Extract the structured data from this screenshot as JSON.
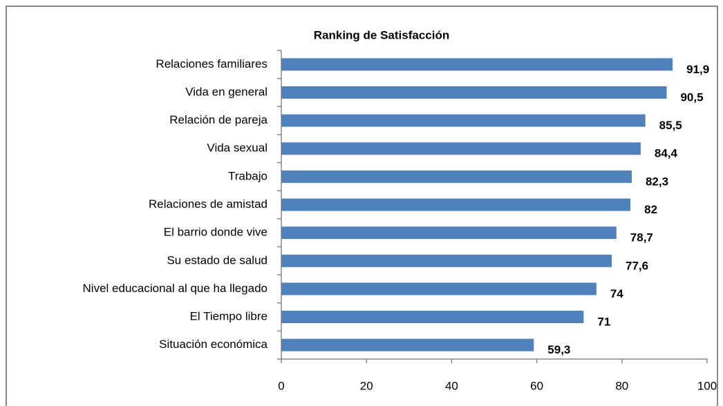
{
  "chart_data": {
    "type": "bar",
    "orientation": "horizontal",
    "title": "Ranking de Satisfacción",
    "categories": [
      "Relaciones familiares",
      "Vida en general",
      "Relación de pareja",
      "Vida sexual",
      "Trabajo",
      "Relaciones de amistad",
      "El barrio donde vive",
      "Su estado de salud",
      "Nivel educacional al que ha llegado",
      "El Tiempo libre",
      "Situación económica"
    ],
    "values": [
      91.9,
      90.5,
      85.5,
      84.4,
      82.3,
      82,
      78.7,
      77.6,
      74,
      71,
      59.3
    ],
    "value_labels": [
      "91,9",
      "90,5",
      "85,5",
      "84,4",
      "82,3",
      "82",
      "78,7",
      "77,6",
      "74",
      "71",
      "59,3"
    ],
    "color": "#4f81bd",
    "xlim": [
      0,
      100
    ],
    "xticks": [
      0,
      20,
      40,
      60,
      80,
      100
    ],
    "grid": false
  }
}
